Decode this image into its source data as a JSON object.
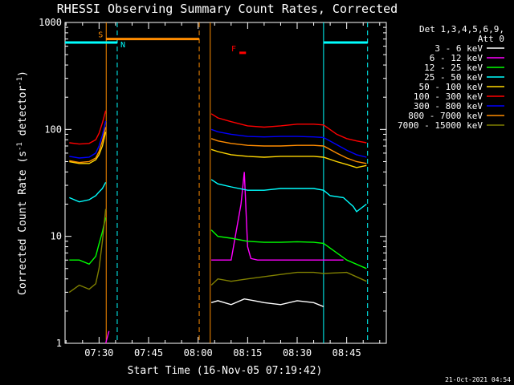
{
  "chart_data": {
    "type": "line",
    "title": "RHESSI Observing Summary Count Rates, Corrected",
    "xlabel": "Start Time (16-Nov-05 07:19:42)",
    "ylabel_main": "Corrected Count Rate (s",
    "ylabel_sup1": "-1",
    "ylabel_mid": " detector",
    "ylabel_sup2": "-1",
    "ylabel_end": ")",
    "y_scale": "log",
    "ylim": [
      1,
      1000
    ],
    "y_ticks": [
      {
        "value": 1,
        "label": "1"
      },
      {
        "value": 10,
        "label": "10"
      },
      {
        "value": 100,
        "label": "100"
      },
      {
        "value": 1000,
        "label": "1000"
      }
    ],
    "xlim": [
      "07:19:42",
      "08:57:00"
    ],
    "x_ticks": [
      {
        "time": "07:30",
        "label": "07:30"
      },
      {
        "time": "07:45",
        "label": "07:45"
      },
      {
        "time": "08:00",
        "label": "08:00"
      },
      {
        "time": "08:15",
        "label": "08:15"
      },
      {
        "time": "08:30",
        "label": "08:30"
      },
      {
        "time": "08:45",
        "label": "08:45"
      }
    ],
    "legend_header": [
      "Det 1,3,4,5,6,9,",
      "Att 0"
    ],
    "legend_position": "right",
    "series": [
      {
        "name": "3 - 6 keV",
        "color": "#ffffff",
        "x": [
          "08:04",
          "08:06",
          "08:10",
          "08:14",
          "08:17",
          "08:20",
          "08:25",
          "08:30",
          "08:35",
          "08:38"
        ],
        "values": [
          2.4,
          2.5,
          2.3,
          2.6,
          2.5,
          2.4,
          2.3,
          2.5,
          2.4,
          2.2
        ]
      },
      {
        "name": "6 - 12 keV",
        "color": "#ff00ff",
        "x": [
          "07:32",
          "07:33",
          "08:04",
          "08:10",
          "08:13",
          "08:14",
          "08:15",
          "08:16",
          "08:18",
          "08:25",
          "08:35",
          "08:44"
        ],
        "values": [
          1.0,
          1.3,
          6.0,
          6.0,
          20,
          40,
          8,
          6.2,
          6.0,
          6.0,
          6.0,
          6.0
        ]
      },
      {
        "name": "12 - 25 keV",
        "color": "#00ff00",
        "x": [
          "07:21",
          "07:24",
          "07:27",
          "07:29",
          "07:30",
          "07:31",
          "07:32",
          "08:04",
          "08:06",
          "08:10",
          "08:15",
          "08:20",
          "08:25",
          "08:30",
          "08:35",
          "08:38",
          "08:45",
          "08:51"
        ],
        "values": [
          6.0,
          6.0,
          5.5,
          6.5,
          8.5,
          11,
          15,
          11.5,
          10,
          9.6,
          9.0,
          8.8,
          8.8,
          8.9,
          8.8,
          8.6,
          6.0,
          5.0
        ]
      },
      {
        "name": "25 - 50 keV",
        "color": "#00ffff",
        "x": [
          "07:21",
          "07:24",
          "07:27",
          "07:29",
          "07:30",
          "07:31",
          "07:32",
          "08:04",
          "08:06",
          "08:10",
          "08:15",
          "08:20",
          "08:25",
          "08:30",
          "08:35",
          "08:38",
          "08:40",
          "08:44",
          "08:47",
          "08:48",
          "08:51"
        ],
        "values": [
          23,
          21,
          22,
          24,
          26,
          28,
          32,
          34,
          31,
          29,
          27,
          27,
          28,
          28,
          28,
          27,
          24,
          23,
          19,
          17,
          20
        ]
      },
      {
        "name": "50 - 100 keV",
        "color": "#ffd700",
        "x": [
          "07:21",
          "07:24",
          "07:27",
          "07:29",
          "07:30",
          "07:31",
          "07:32",
          "08:04",
          "08:06",
          "08:10",
          "08:15",
          "08:20",
          "08:25",
          "08:30",
          "08:35",
          "08:38",
          "08:42",
          "08:45",
          "08:48",
          "08:51"
        ],
        "values": [
          50,
          48,
          48,
          52,
          58,
          70,
          95,
          65,
          62,
          58,
          56,
          55,
          56,
          56,
          56,
          55,
          50,
          47,
          44,
          46
        ]
      },
      {
        "name": "100 - 300 keV",
        "color": "#ff0000",
        "x": [
          "07:21",
          "07:24",
          "07:27",
          "07:29",
          "07:30",
          "07:31",
          "07:32",
          "08:04",
          "08:06",
          "08:10",
          "08:15",
          "08:20",
          "08:25",
          "08:30",
          "08:35",
          "08:38",
          "08:42",
          "08:45",
          "08:48",
          "08:51"
        ],
        "values": [
          75,
          73,
          74,
          80,
          92,
          115,
          150,
          140,
          128,
          118,
          108,
          105,
          108,
          112,
          112,
          110,
          90,
          82,
          78,
          75
        ]
      },
      {
        "name": "300 - 800 keV",
        "color": "#0000ff",
        "x": [
          "07:21",
          "07:24",
          "07:27",
          "07:29",
          "07:30",
          "07:31",
          "07:32",
          "08:04",
          "08:06",
          "08:10",
          "08:15",
          "08:20",
          "08:25",
          "08:30",
          "08:35",
          "08:38",
          "08:42",
          "08:45",
          "08:48",
          "08:51"
        ],
        "values": [
          56,
          54,
          55,
          60,
          70,
          88,
          120,
          100,
          95,
          90,
          86,
          85,
          86,
          86,
          85,
          84,
          72,
          64,
          58,
          55
        ]
      },
      {
        "name": "800 - 7000 keV",
        "color": "#ff8c00",
        "x": [
          "07:21",
          "07:24",
          "07:27",
          "07:29",
          "07:30",
          "07:31",
          "07:32",
          "08:04",
          "08:06",
          "08:10",
          "08:15",
          "08:20",
          "08:25",
          "08:30",
          "08:35",
          "08:38",
          "08:42",
          "08:45",
          "08:48",
          "08:51"
        ],
        "values": [
          51,
          49,
          50,
          54,
          62,
          78,
          105,
          82,
          78,
          74,
          71,
          70,
          70,
          71,
          71,
          70,
          60,
          54,
          50,
          48
        ]
      },
      {
        "name": "7000 - 15000 keV",
        "color": "#808000",
        "x": [
          "07:21",
          "07:24",
          "07:27",
          "07:29",
          "07:30",
          "07:31",
          "07:32",
          "08:04",
          "08:06",
          "08:10",
          "08:15",
          "08:20",
          "08:25",
          "08:30",
          "08:35",
          "08:38",
          "08:45",
          "08:51"
        ],
        "values": [
          3.0,
          3.5,
          3.2,
          3.6,
          5.0,
          9.0,
          18,
          3.5,
          4.0,
          3.8,
          4.0,
          4.2,
          4.4,
          4.6,
          4.6,
          4.5,
          4.6,
          3.8
        ]
      }
    ],
    "time_markers": [
      {
        "time": "07:32:10",
        "style": "solid",
        "color": "#ff8c00"
      },
      {
        "time": "07:35:30",
        "style": "dashed",
        "color": "#00ffff"
      },
      {
        "time": "08:00:20",
        "style": "dashed",
        "color": "#ff8c00"
      },
      {
        "time": "08:03:40",
        "style": "solid",
        "color": "#ff8c00"
      },
      {
        "time": "08:38:00",
        "style": "solid",
        "color": "#00ffff"
      },
      {
        "time": "08:51:20",
        "style": "dashed",
        "color": "#00ffff"
      }
    ],
    "flag_bars": [
      {
        "label": "S",
        "color": "#ff8c00",
        "from": "07:32:10",
        "to": "08:00:20",
        "value": 700
      },
      {
        "label": "N",
        "color": "#00ffff",
        "from": "07:19:42",
        "to": "07:35:30",
        "value": 650
      },
      {
        "label": "",
        "color": "#00ffff",
        "from": "08:38:00",
        "to": "08:51:20",
        "value": 650
      },
      {
        "label": "F",
        "color": "#ff0000",
        "from": "08:12:30",
        "to": "08:14:30",
        "value": 520
      }
    ]
  },
  "footer": {
    "timestamp": "21-Oct-2021 04:54"
  }
}
